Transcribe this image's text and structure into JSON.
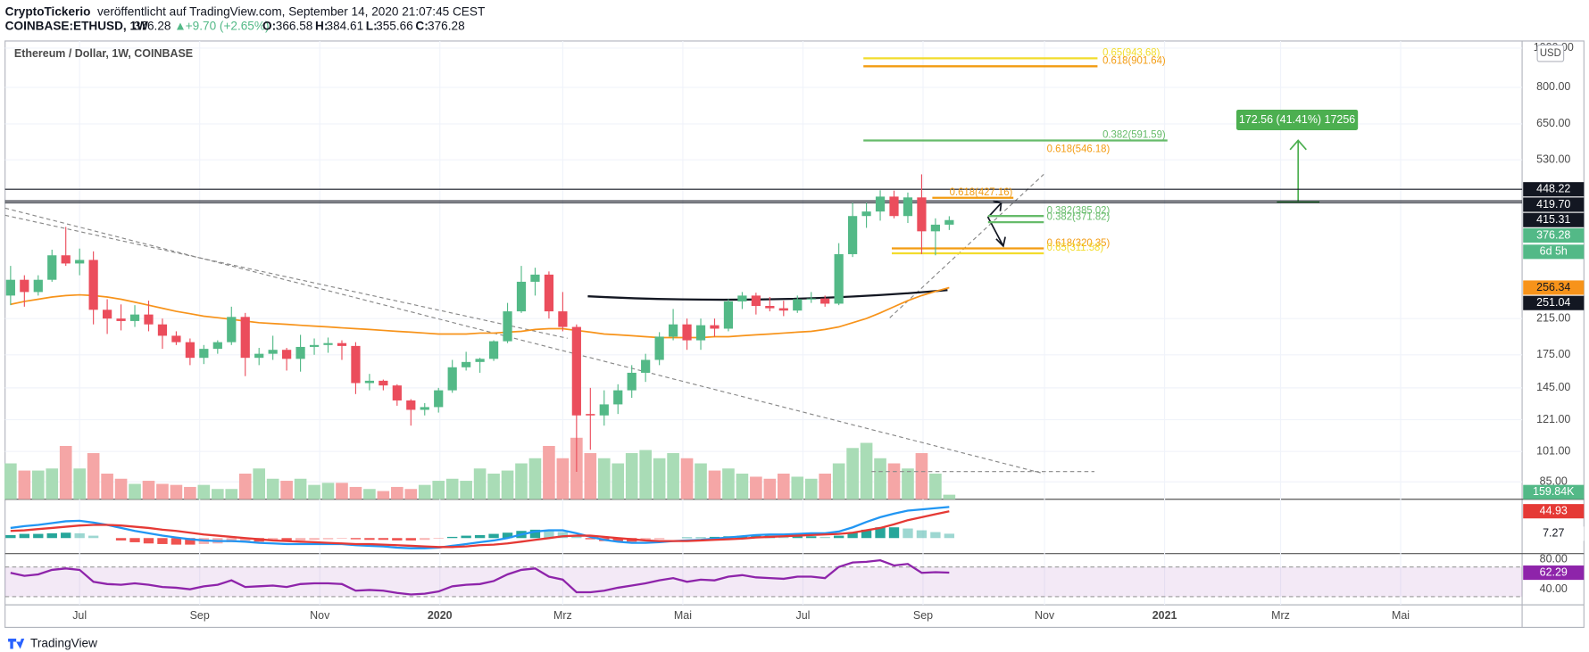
{
  "header": {
    "author": "CryptoTickerio",
    "published": "veröffentlicht auf TradingView.com, September 14, 2020 21:07:45 CEST",
    "symbol": "COINBASE:ETHUSD, 1W",
    "change": "+9.70 (+2.65%)",
    "labels": [
      "O:",
      "H:",
      "L:",
      "C:"
    ]
  },
  "footer": "TradingView",
  "chart_data": {
    "type": "candlestick",
    "title": "Ethereum / Dollar, 1W, COINBASE",
    "currency": "USD",
    "log_scale": true,
    "grid": true,
    "colors": {
      "up": "#53b987",
      "down": "#eb4d5c",
      "vol_up": "#a9dcb6",
      "vol_down": "#f5a6a6"
    },
    "xlim": [
      -0.4,
      109.5
    ],
    "xticks": [
      {
        "value": 5.0,
        "label": "Jul"
      },
      {
        "value": 13.7,
        "label": "Sep"
      },
      {
        "value": 22.4,
        "label": "Nov"
      },
      {
        "value": 31.1,
        "label": "2020"
      },
      {
        "value": 40.0,
        "label": "Mrz"
      },
      {
        "value": 48.7,
        "label": "Mai"
      },
      {
        "value": 57.4,
        "label": "Jul"
      },
      {
        "value": 66.1,
        "label": "Sep"
      },
      {
        "value": 74.9,
        "label": "Nov"
      },
      {
        "value": 83.6,
        "label": "2021"
      },
      {
        "value": 92.0,
        "label": "Mrz"
      },
      {
        "value": 100.7,
        "label": "Mai"
      }
    ],
    "ylim": [
      77,
      1041
    ],
    "yticks": [
      {
        "value": 1000,
        "label": "1000.00"
      },
      {
        "value": 800,
        "label": "800.00"
      },
      {
        "value": 650,
        "label": "650.00"
      },
      {
        "value": 530,
        "label": "530.00"
      },
      {
        "value": 215,
        "label": "215.00"
      },
      {
        "value": 175,
        "label": "175.00"
      },
      {
        "value": 145,
        "label": "145.00"
      },
      {
        "value": 121,
        "label": "121.00"
      },
      {
        "value": 101,
        "label": "101.00"
      },
      {
        "value": 85,
        "label": "85.00"
      }
    ],
    "ohlc": [
      [
        245,
        290,
        232,
        268
      ],
      [
        268,
        275,
        230,
        250
      ],
      [
        250,
        275,
        245,
        268
      ],
      [
        268,
        318,
        265,
        308
      ],
      [
        308,
        362,
        290,
        294
      ],
      [
        294,
        320,
        275,
        300
      ],
      [
        300,
        315,
        208,
        226
      ],
      [
        226,
        240,
        197,
        215
      ],
      [
        215,
        233,
        201,
        212
      ],
      [
        212,
        232,
        205,
        220
      ],
      [
        220,
        238,
        200,
        208
      ],
      [
        208,
        215,
        181,
        195
      ],
      [
        195,
        200,
        185,
        188
      ],
      [
        188,
        192,
        165,
        172
      ],
      [
        172,
        185,
        166,
        181
      ],
      [
        181,
        190,
        176,
        188
      ],
      [
        188,
        230,
        185,
        217
      ],
      [
        217,
        222,
        155,
        172
      ],
      [
        172,
        182,
        165,
        176
      ],
      [
        176,
        195,
        170,
        180
      ],
      [
        180,
        182,
        160,
        171
      ],
      [
        171,
        196,
        159,
        183
      ],
      [
        183,
        192,
        175,
        185
      ],
      [
        185,
        193,
        177,
        187
      ],
      [
        187,
        190,
        170,
        184
      ],
      [
        184,
        188,
        140,
        149
      ],
      [
        149,
        157,
        143,
        151
      ],
      [
        151,
        152,
        143,
        147
      ],
      [
        147,
        148,
        131,
        135
      ],
      [
        135,
        136,
        117,
        128
      ],
      [
        128,
        133,
        124,
        130
      ],
      [
        130,
        145,
        126,
        143
      ],
      [
        143,
        170,
        141,
        163
      ],
      [
        163,
        178,
        160,
        168
      ],
      [
        168,
        172,
        158,
        171
      ],
      [
        171,
        190,
        169,
        189
      ],
      [
        189,
        235,
        187,
        224
      ],
      [
        224,
        290,
        222,
        265
      ],
      [
        265,
        287,
        245,
        276
      ],
      [
        276,
        281,
        215,
        224
      ],
      [
        224,
        250,
        200,
        205
      ],
      [
        205,
        208,
        90,
        124
      ],
      [
        125,
        145,
        102,
        124
      ],
      [
        124,
        143,
        117,
        132
      ],
      [
        132,
        148,
        125,
        143
      ],
      [
        143,
        165,
        137,
        158
      ],
      [
        158,
        176,
        150,
        170
      ],
      [
        170,
        199,
        165,
        194
      ],
      [
        194,
        227,
        190,
        208
      ],
      [
        208,
        215,
        180,
        190
      ],
      [
        190,
        215,
        180,
        207
      ],
      [
        207,
        215,
        194,
        203
      ],
      [
        203,
        240,
        200,
        237
      ],
      [
        237,
        250,
        227,
        245
      ],
      [
        245,
        249,
        220,
        231
      ],
      [
        231,
        243,
        224,
        228
      ],
      [
        228,
        238,
        218,
        225
      ],
      [
        225,
        245,
        222,
        240
      ],
      [
        240,
        250,
        235,
        241
      ],
      [
        241,
        245,
        230,
        234
      ],
      [
        234,
        330,
        232,
        310
      ],
      [
        310,
        415,
        305,
        385
      ],
      [
        385,
        415,
        360,
        395
      ],
      [
        395,
        446,
        375,
        430
      ],
      [
        430,
        445,
        380,
        385
      ],
      [
        385,
        440,
        370,
        428
      ],
      [
        428,
        488,
        310,
        353
      ],
      [
        353,
        380,
        308,
        366.58
      ],
      [
        366.58,
        384.61,
        355.66,
        376.28
      ]
    ],
    "countdown": "6d 5h",
    "ma": {
      "color": "#f7931a",
      "values": [
        233,
        237,
        240,
        243,
        245,
        246,
        245,
        243,
        240,
        236,
        232,
        228,
        224,
        221,
        218,
        216,
        214,
        212,
        210,
        209,
        208,
        207,
        206,
        205,
        204,
        203,
        202,
        201,
        200,
        199,
        198,
        197,
        197,
        197,
        198,
        198,
        199,
        200,
        202,
        203,
        203,
        201,
        199,
        197,
        196,
        195,
        194,
        193,
        193,
        193,
        193,
        194,
        194,
        195,
        196,
        197,
        198,
        199,
        200,
        202,
        205,
        210,
        215,
        222,
        230,
        238,
        245,
        251,
        256.34
      ]
    },
    "levels": {
      "color": "#131722",
      "values": [
        448.22,
        {
          "value": 419.7,
          "label": "419.70"
        },
        415.31
      ]
    },
    "curve_end": 251.04,
    "fibs": [
      {
        "value": 943.68,
        "label": "0.65(943.68)",
        "color": "#f2dc2c"
      },
      {
        "value": 901.64,
        "label": "0.618(901.64)",
        "color": "#f39c12"
      },
      {
        "value": 591.59,
        "label": "0.382(591.59)",
        "color": "#66bb6a"
      },
      {
        "value": 546.18,
        "label": "0.618(546.18)",
        "color": "#f39c12"
      },
      {
        "value": 427.16,
        "label": "0.618(427.16)",
        "color": "#f39c12"
      },
      {
        "value": 385.02,
        "label": "0.382(385.02)",
        "color": "#66bb6a"
      },
      {
        "value": 371.82,
        "label": "0.382(371.82)",
        "color": "#66bb6a"
      },
      {
        "value": 320.35,
        "label": "0.618(320.35)",
        "color": "#f39c12"
      },
      {
        "value": 311.58,
        "label": "0.65(311.58)",
        "color": "#f2dc2c"
      }
    ],
    "measure": "172.56 (41.41%) 17256",
    "volume": {
      "last_label": "159.84K",
      "values": [
        1260000,
        1008000,
        1008000,
        1080000,
        1872000,
        1080000,
        1620000,
        900000,
        720000,
        540000,
        648000,
        540000,
        504000,
        432000,
        504000,
        360000,
        360000,
        900000,
        1080000,
        720000,
        648000,
        720000,
        504000,
        576000,
        576000,
        432000,
        360000,
        288000,
        432000,
        360000,
        504000,
        648000,
        720000,
        648000,
        1080000,
        900000,
        1008000,
        1260000,
        1440000,
        1872000,
        1440000,
        2160000,
        1620000,
        1440000,
        1260000,
        1620000,
        1728000,
        1440000,
        1620000,
        1440000,
        1260000,
        1008000,
        1080000,
        900000,
        792000,
        720000,
        900000,
        792000,
        720000,
        900000,
        1260000,
        1800000,
        1980000,
        1440000,
        1260000,
        1080000,
        1620000,
        900000,
        159840
      ]
    },
    "macd": {
      "ylim": [
        -26,
        65
      ],
      "macd_color": "#2196f3",
      "signal_color": "#e53935",
      "hist_up": "#26a69a",
      "hist_down": "#ef5350",
      "macd": [
        17,
        20,
        22,
        25,
        28,
        29,
        26,
        22,
        17,
        12,
        8,
        4,
        1,
        -2,
        -4,
        -5,
        -5,
        -6,
        -8,
        -9,
        -10,
        -10,
        -10,
        -10,
        -10,
        -12,
        -13,
        -14,
        -16,
        -17,
        -17,
        -16,
        -13,
        -10,
        -7,
        -4,
        0,
        6,
        11,
        13,
        13,
        8,
        2,
        -3,
        -6,
        -8,
        -8,
        -7,
        -5,
        -4,
        -3,
        -1,
        1,
        3,
        5,
        6,
        6,
        7,
        8,
        8,
        11,
        18,
        27,
        35,
        41,
        46,
        48,
        50,
        52.2
      ],
      "signal": [
        12,
        13,
        15,
        17,
        19,
        21,
        22,
        22,
        21,
        19,
        17,
        14,
        12,
        9,
        6,
        4,
        2,
        0,
        -2,
        -4,
        -5,
        -6,
        -7,
        -8,
        -9,
        -10,
        -10,
        -11,
        -12,
        -13,
        -14,
        -15,
        -15,
        -14,
        -12,
        -11,
        -9,
        -6,
        -3,
        0,
        3,
        4,
        4,
        2,
        0,
        -2,
        -4,
        -5,
        -5,
        -5,
        -4,
        -3,
        -2,
        -1,
        1,
        2,
        3,
        4,
        5,
        6,
        7,
        9,
        13,
        17,
        23,
        30,
        35,
        40,
        44.93
      ],
      "hist": [
        5,
        7,
        7,
        8,
        9,
        8,
        4,
        0,
        -4,
        -7,
        -9,
        -10,
        -11,
        -11,
        -10,
        -9,
        -7,
        -6,
        -6,
        -5,
        -5,
        -4,
        -3,
        -2,
        -1,
        -2,
        -3,
        -3,
        -4,
        -4,
        -3,
        -1,
        2,
        4,
        5,
        7,
        9,
        12,
        14,
        13,
        10,
        4,
        -2,
        -5,
        -6,
        -6,
        -4,
        -2,
        0,
        1,
        1,
        2,
        3,
        4,
        4,
        4,
        3,
        3,
        3,
        2,
        4,
        9,
        14,
        18,
        18,
        16,
        13,
        10,
        7.27
      ]
    },
    "rsi": {
      "ylim": [
        19,
        88
      ],
      "yticks": [
        {
          "value": 80,
          "label": "80.00"
        },
        {
          "value": 40,
          "label": "40.00"
        }
      ],
      "band": [
        30,
        70
      ],
      "color": "#8e24aa",
      "values": [
        62,
        58,
        60,
        66,
        68,
        66,
        50,
        47,
        46,
        48,
        46,
        43,
        42,
        40,
        44,
        46,
        52,
        43,
        44,
        45,
        43,
        47,
        48,
        48,
        47,
        38,
        39,
        38,
        35,
        33,
        34,
        37,
        44,
        46,
        47,
        51,
        60,
        66,
        68,
        57,
        53,
        36,
        36,
        38,
        42,
        45,
        48,
        52,
        55,
        50,
        53,
        52,
        57,
        59,
        56,
        55,
        54,
        57,
        57,
        55,
        70,
        76,
        77,
        79,
        72,
        74,
        62,
        63,
        62.29
      ]
    }
  }
}
